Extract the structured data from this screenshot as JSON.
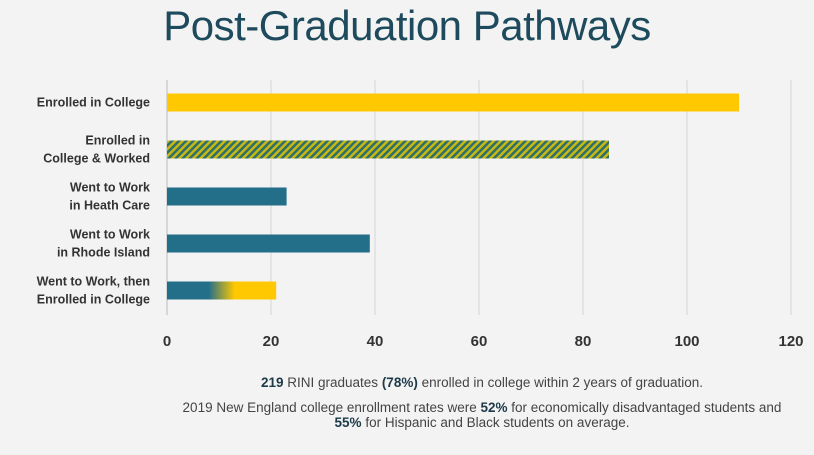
{
  "chart_data": {
    "type": "bar",
    "orientation": "horizontal",
    "title": "Post-Graduation Pathways",
    "categories": [
      "Enrolled in College",
      "Enrolled in College & Worked",
      "Went to Work in Heath Care",
      "Went to Work in Rhode Island",
      "Went to Work, then Enrolled in College"
    ],
    "category_lines": [
      [
        "Enrolled in College"
      ],
      [
        "Enrolled in",
        "College & Worked"
      ],
      [
        "Went to Work",
        "in Heath Care"
      ],
      [
        "Went to Work",
        "in Rhode Island"
      ],
      [
        "Went to Work, then",
        "Enrolled in College"
      ]
    ],
    "values": [
      110,
      85,
      23,
      39,
      21
    ],
    "bar_styles": [
      "yellow",
      "yellow-teal-hatched",
      "teal",
      "teal",
      "teal-to-yellow-gradient"
    ],
    "xlim": [
      0,
      120
    ],
    "xticks": [
      0,
      20,
      40,
      60,
      80,
      100,
      120
    ],
    "grid": true,
    "colors": {
      "yellow": "#ffc800",
      "teal": "#236f8a",
      "green": "#6a8a3a"
    }
  },
  "notes": {
    "line1": {
      "b1": "219",
      "t1": " RINI graduates ",
      "b2": "(78%)",
      "t2": " enrolled in college within 2 years of graduation."
    },
    "line2": {
      "t1": "2019 New England college enrollment rates were ",
      "b1": "52%",
      "t2": " for economically disadvantaged students and ",
      "b2": "55%",
      "t3": " for Hispanic and Black students on average."
    }
  }
}
